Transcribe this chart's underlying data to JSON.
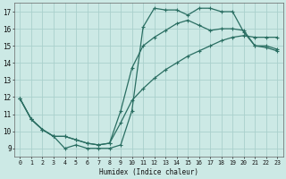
{
  "xlabel": "Humidex (Indice chaleur)",
  "ylabel": "",
  "bg_color": "#cce9e5",
  "grid_color": "#aad0cc",
  "line_color": "#2a6e62",
  "xlim": [
    -0.5,
    23.5
  ],
  "ylim": [
    8.5,
    17.5
  ],
  "yticks": [
    9,
    10,
    11,
    12,
    13,
    14,
    15,
    16,
    17
  ],
  "xticks": [
    0,
    1,
    2,
    3,
    4,
    5,
    6,
    7,
    8,
    9,
    10,
    11,
    12,
    13,
    14,
    15,
    16,
    17,
    18,
    19,
    20,
    21,
    22,
    23
  ],
  "line1_x": [
    0,
    1,
    2,
    3,
    4,
    5,
    6,
    7,
    8,
    9,
    10,
    11,
    12,
    13,
    14,
    15,
    16,
    17,
    18,
    19,
    20,
    21,
    22,
    23
  ],
  "line1_y": [
    11.9,
    10.7,
    10.1,
    9.7,
    9.0,
    9.2,
    9.0,
    9.0,
    9.0,
    9.2,
    11.2,
    16.1,
    17.2,
    17.1,
    17.1,
    16.8,
    17.2,
    17.2,
    17.0,
    17.0,
    15.8,
    15.0,
    14.9,
    14.7
  ],
  "line2_x": [
    0,
    1,
    2,
    3,
    4,
    5,
    6,
    7,
    8,
    9,
    10,
    11,
    12,
    13,
    14,
    15,
    16,
    17,
    18,
    19,
    20,
    21,
    22,
    23
  ],
  "line2_y": [
    11.9,
    10.7,
    10.1,
    9.7,
    9.7,
    9.5,
    9.3,
    9.2,
    9.3,
    11.2,
    13.7,
    15.0,
    15.5,
    15.9,
    16.3,
    16.5,
    16.2,
    15.9,
    16.0,
    16.0,
    15.9,
    15.0,
    15.0,
    14.8
  ],
  "line3_x": [
    0,
    1,
    2,
    3,
    4,
    5,
    6,
    7,
    8,
    9,
    10,
    11,
    12,
    13,
    14,
    15,
    16,
    17,
    18,
    19,
    20,
    21,
    22,
    23
  ],
  "line3_y": [
    11.9,
    10.7,
    10.1,
    9.7,
    9.7,
    9.5,
    9.3,
    9.2,
    9.3,
    10.5,
    11.8,
    12.5,
    13.1,
    13.6,
    14.0,
    14.4,
    14.7,
    15.0,
    15.3,
    15.5,
    15.6,
    15.5,
    15.5,
    15.5
  ]
}
